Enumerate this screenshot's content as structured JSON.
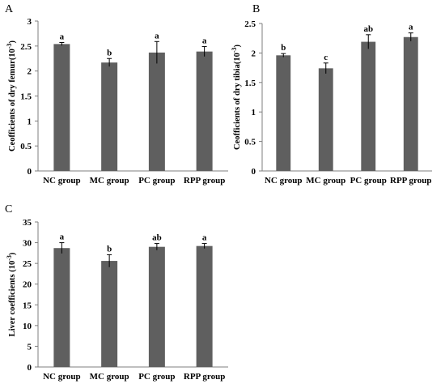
{
  "chart_data": [
    {
      "type": "bar",
      "panel": "A",
      "ylabel": "Ceofficients of dry femur(10^-3)",
      "ylim": [
        0,
        3
      ],
      "yticks": [
        "0",
        "0.5",
        "1",
        "1.5",
        "2",
        "2.5",
        "3"
      ],
      "categories": [
        "NC group",
        "MC group",
        "PC group",
        "RPP group"
      ],
      "values": [
        2.54,
        2.17,
        2.37,
        2.39
      ],
      "errors": [
        0.03,
        0.08,
        0.22,
        0.1
      ],
      "significance": [
        "a",
        "b",
        "a",
        "a"
      ],
      "grid": false
    },
    {
      "type": "bar",
      "panel": "B",
      "ylabel": "Ceofficients of dry tibia(10^-3)",
      "ylim": [
        0,
        2.5
      ],
      "yticks": [
        "0",
        "0.5",
        "1",
        "1.5",
        "2",
        "2.5"
      ],
      "categories": [
        "NC group",
        "MC group",
        "PC group",
        "RPP group"
      ],
      "values": [
        1.96,
        1.74,
        2.19,
        2.27
      ],
      "errors": [
        0.03,
        0.09,
        0.12,
        0.07
      ],
      "significance": [
        "b",
        "c",
        "ab",
        "a"
      ],
      "grid": false
    },
    {
      "type": "bar",
      "panel": "C",
      "ylabel": "Liver coefficients (10^-3)",
      "ylim": [
        0,
        35
      ],
      "yticks": [
        "0",
        "5",
        "10",
        "15",
        "20",
        "25",
        "30",
        "35"
      ],
      "categories": [
        "NC group",
        "MC group",
        "PC group",
        "RPP group"
      ],
      "values": [
        28.7,
        25.6,
        29.0,
        29.2
      ],
      "errors": [
        1.3,
        1.5,
        0.8,
        0.6
      ],
      "significance": [
        "a",
        "b",
        "ab",
        "a"
      ],
      "grid": false
    }
  ],
  "colors": {
    "bar": "#5f5f5f",
    "axis": "#7f7f7f",
    "error": "#000000"
  }
}
